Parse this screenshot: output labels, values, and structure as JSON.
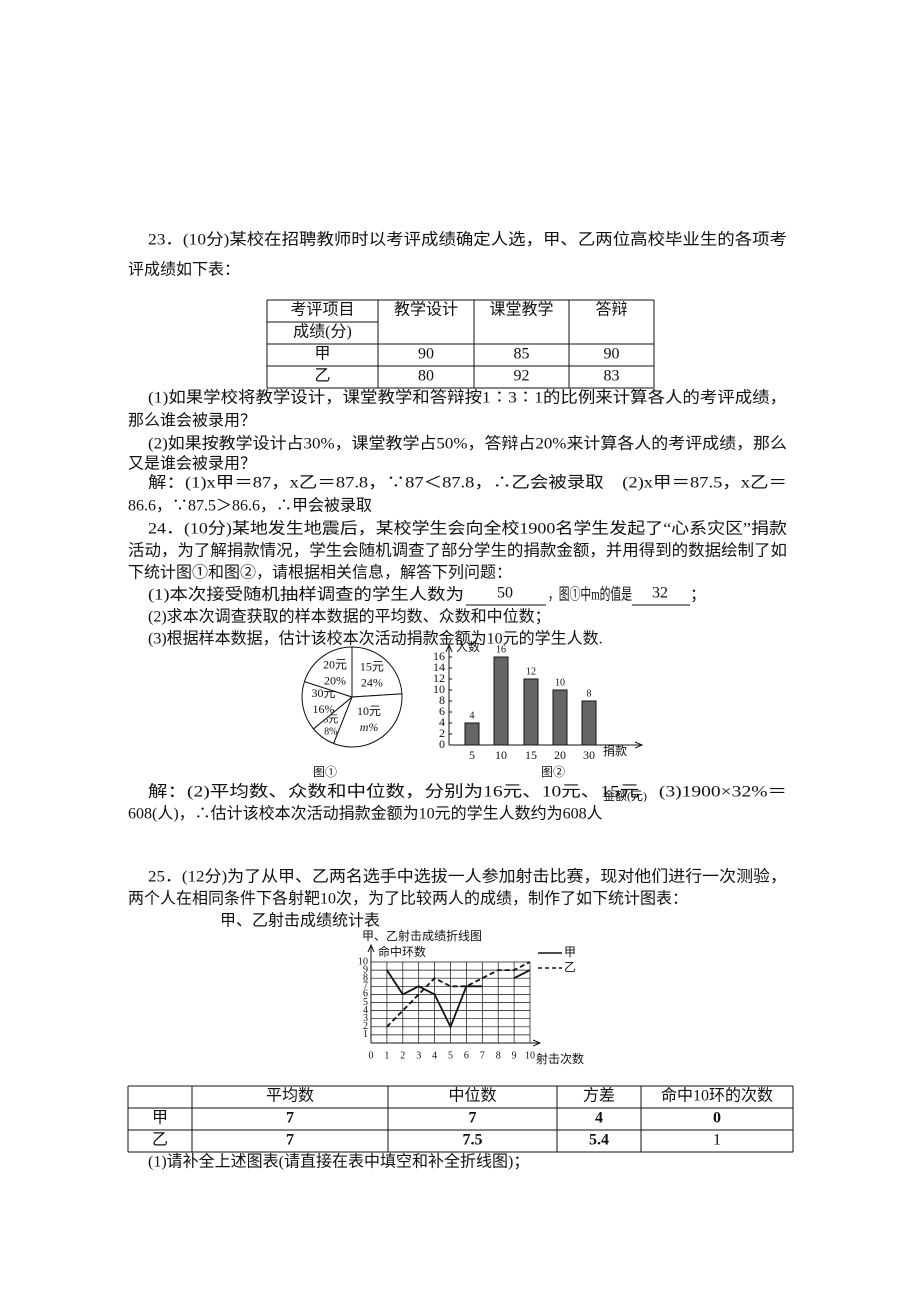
{
  "q23": {
    "intro": [
      "23．(10分)某校在招聘教师时以考评成绩确定人选，甲、乙两位高校毕业生的各项考",
      "评成绩如下表："
    ],
    "table": {
      "header": [
        "考评项目",
        "成绩(分)",
        "教学设计",
        "课堂教学",
        "答辩"
      ],
      "rows": [
        [
          "甲",
          "90",
          "85",
          "90"
        ],
        [
          "乙",
          "80",
          "92",
          "83"
        ]
      ]
    },
    "questions": [
      "(1)如果学校将教学设计，课堂教学和答辩按1∶3∶1的比例来计算各人的考评成绩，",
      "那么谁会被录用？",
      "(2)如果按教学设计占30%，课堂教学占50%，答辩占20%来计算各人的考评成绩，那么",
      "又是谁会被录用？"
    ],
    "solution": [
      "解：(1)x甲＝87，x乙＝87.8，∵87＜87.8，∴乙会被录取　(2)x甲＝87.5，x乙＝",
      "86.6，∵87.5＞86.6，∴甲会被录取"
    ]
  },
  "q24": {
    "intro": [
      "24．(10分)某地发生地震后，某校学生会向全校1900名学生发起了“心系灾区”捐款",
      "活动，为了解捐款情况，学生会随机调查了部分学生的捐款金额，并用得到的数据绘制了如",
      "下统计图①和图②，请根据相关信息，解答下列问题："
    ],
    "q1": [
      "(1)本次接受随机抽样调查的学生人数为",
      "50",
      "，图①中m的值是",
      "32",
      "；"
    ],
    "q2": "(2)求本次调查获取的样本数据的平均数、众数和中位数；",
    "q3": "(3)根据样本数据，估计该校本次活动捐款金额为10元的学生人数.",
    "pie": {
      "type": "pie",
      "categories": [
        "15元",
        "10元",
        "5元",
        "30元",
        "20元"
      ],
      "values": [
        24,
        32,
        8,
        16,
        20
      ],
      "value_labels": [
        "24%",
        "m%",
        "8%",
        "16%",
        "20%"
      ],
      "caption": "图①"
    },
    "bar": {
      "type": "bar",
      "categories": [
        "5",
        "10",
        "15",
        "20",
        "30"
      ],
      "values": [
        4,
        16,
        12,
        10,
        8
      ],
      "color": "#666666",
      "ylim": [
        0,
        16
      ],
      "yticks": [
        0,
        2,
        4,
        6,
        8,
        10,
        12,
        14,
        16
      ],
      "ylabel": "人数",
      "xlabel": [
        "捐款",
        "金额(元)"
      ],
      "caption": "图②"
    },
    "solution": [
      "解：(2)平均数、众数和中位数，分别为16元、10元、15元　(3)1900×32%＝",
      "608(人)，∴估计该校本次活动捐款金额为10元的学生人数约为608人"
    ]
  },
  "q25": {
    "intro": [
      "25．(12分)为了从甲、乙两名选手中选拔一人参加射击比赛，现对他们进行一次测验，",
      "两个人在相同条件下各射靶10次，为了比较两人的成绩，制作了如下统计图表："
    ],
    "table_title": "甲、乙射击成绩统计表",
    "chart": {
      "type": "line",
      "title": "甲、乙射击成绩折线图",
      "ylabel": "命中环数",
      "xlabel": "射击次数",
      "x": [
        1,
        2,
        3,
        4,
        5,
        6,
        7,
        8,
        9,
        10
      ],
      "series": [
        {
          "name": "甲",
          "color": "#111111",
          "dash": "solid",
          "values": [
            9,
            6,
            7,
            6,
            2,
            7,
            7,
            null,
            8,
            9
          ]
        },
        {
          "name": "乙",
          "color": "#111111",
          "dash": "dashed",
          "values": [
            2,
            4,
            6,
            8,
            7,
            7,
            8,
            9,
            9,
            10
          ]
        }
      ],
      "xlim": [
        0,
        10
      ],
      "xticks": [
        0,
        1,
        2,
        3,
        4,
        5,
        6,
        7,
        8,
        9,
        10
      ],
      "ylim": [
        0,
        10
      ],
      "yticks": [
        1,
        2,
        3,
        4,
        5,
        6,
        7,
        8,
        9,
        10
      ],
      "grid": true,
      "legend": "right"
    },
    "table": {
      "header": [
        "平均数",
        "中位数",
        "方差",
        "命中10环的次数"
      ],
      "rows": [
        [
          "甲",
          "7",
          "7",
          "4",
          "0"
        ],
        [
          "乙",
          "7",
          "7.5",
          "5.4",
          "1"
        ]
      ]
    },
    "question": "(1)请补全上述图表(请直接在表中填空和补全折线图)；"
  }
}
